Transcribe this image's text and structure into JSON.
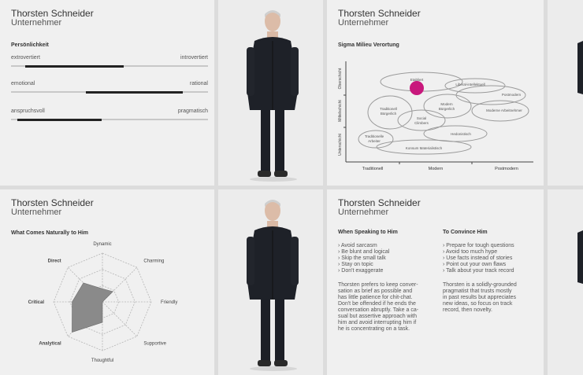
{
  "profile": {
    "name": "Thorsten Schneider",
    "role": "Unternehmer"
  },
  "personality": {
    "title": "Persönlichkeit",
    "scales": [
      {
        "left": "extrovertiert",
        "right": "introvertiert",
        "start": 0.07,
        "end": 0.57
      },
      {
        "left": "emotional",
        "right": "rational",
        "start": 0.38,
        "end": 0.87
      },
      {
        "left": "anspruchsvoll",
        "right": "pragmatisch",
        "start": 0.03,
        "end": 0.46
      }
    ]
  },
  "milieu": {
    "title": "Sigma Milieu Verortung",
    "y_labels": [
      "Oberschicht",
      "Mittelschicht",
      "Unterschicht"
    ],
    "x_labels": [
      "Traditionell",
      "Modern",
      "Postmodern"
    ],
    "milieus": [
      {
        "line1": "Etabliert",
        "line2": ""
      },
      {
        "line1": "Liberal-intellektuell",
        "line2": ""
      },
      {
        "line1": "Postmodern",
        "line2": ""
      },
      {
        "line1": "Traditionell",
        "line2": "Bürgerlich"
      },
      {
        "line1": "Modern",
        "line2": "Bürgerlich"
      },
      {
        "line1": "Moderne Arbeitnehmer",
        "line2": ""
      },
      {
        "line1": "Social",
        "line2": "Climbers"
      },
      {
        "line1": "Traditionelle",
        "line2": "Arbeiter"
      },
      {
        "line1": "Hedonistisch",
        "line2": ""
      },
      {
        "line1": "Konsum Materialistisch",
        "line2": ""
      }
    ],
    "highlight": "Etabliert",
    "highlight_color": "#c8187c"
  },
  "radar": {
    "title": "What Comes Naturally to Him",
    "axes": [
      "Dynamic",
      "Charming",
      "Friendly",
      "Supportive",
      "Thoughtful",
      "Analytical",
      "Critical",
      "Direct"
    ],
    "values": [
      0.27,
      0.3,
      0.0,
      0.0,
      0.42,
      0.88,
      0.62,
      0.55
    ],
    "fill_color": "#8a8a8a"
  },
  "advice": {
    "speaking": {
      "title": "When Speaking to Him",
      "items": [
        "Avoid sarcasm",
        "Be blunt and logical",
        "Skip the small talk",
        "Stay on topic",
        "Don't exaggerate"
      ],
      "p1": "Thorsten prefers to keep conver-",
      "p2": "sation as brief as possible and",
      "p3": "has little patience for chit-chat.",
      "p4": "Don't be offended if he ends the",
      "p5": "conversation abruptly. Take a ca-",
      "p6": "sual but assertive approach with",
      "p7": "him and avoid interrupting him if",
      "p8": "he is concentrating on a task."
    },
    "convince": {
      "title": "To Convince Him",
      "items": [
        "Prepare for tough questions",
        "Avoid too much hype",
        "Use facts instead of stories",
        "Point out your own flaws",
        "Talk about your track record"
      ],
      "p1": "Thorsten is a solidly-grounded",
      "p2": "pragmatist that trusts mostly",
      "p3": "in past results but appreciates",
      "p4": "new ideas, so focus on track",
      "p5": "record, then novelty."
    }
  }
}
